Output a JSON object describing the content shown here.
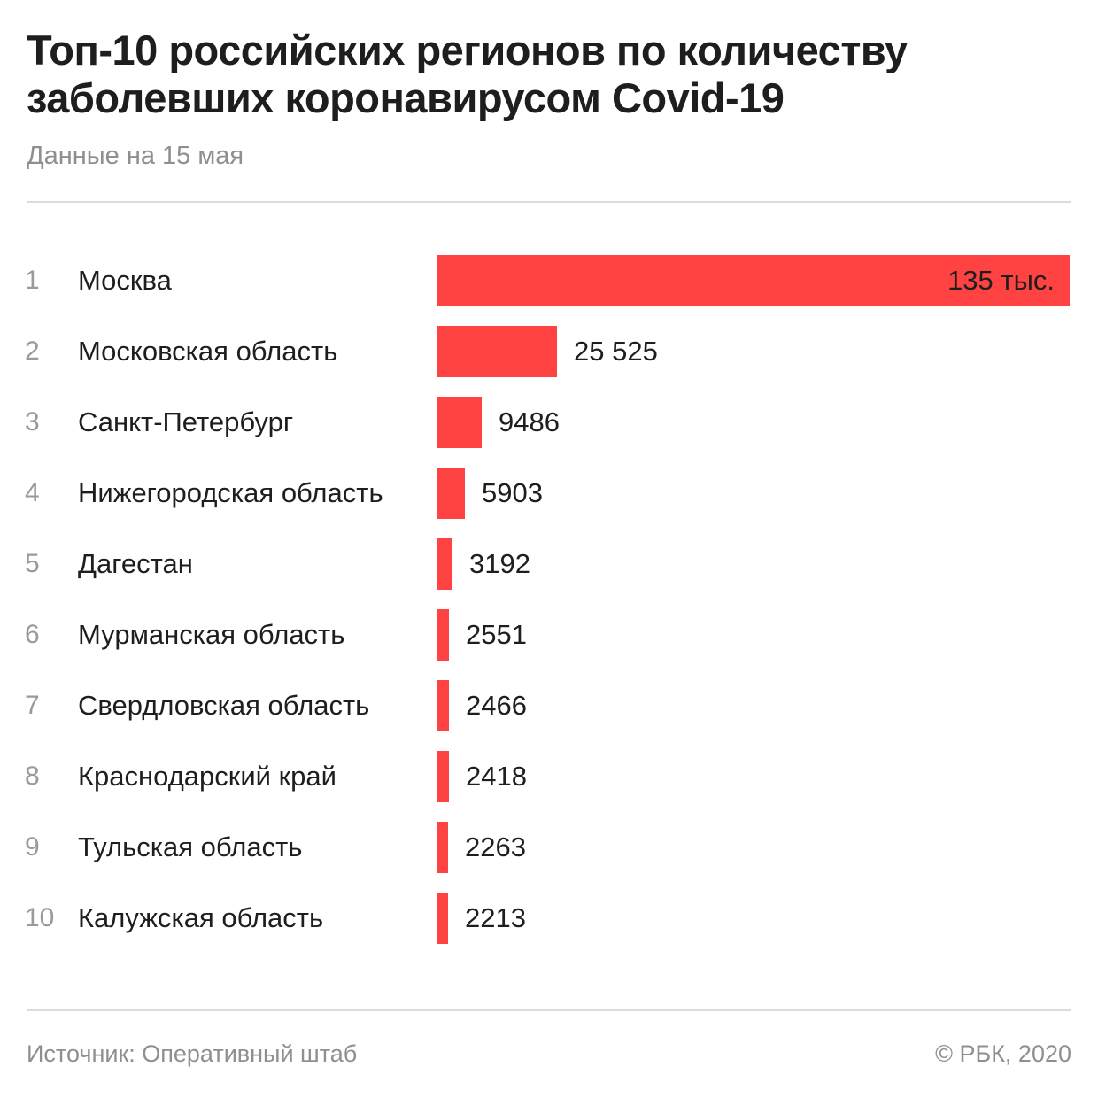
{
  "chart_data": {
    "type": "bar",
    "orientation": "horizontal",
    "title": "Топ-10 российских регионов по количеству заболевших коронавирусом Covid-19",
    "subtitle": "Данные на 15 мая",
    "categories": [
      "Москва",
      "Московская область",
      "Санкт-Петербург",
      "Нижегородская область",
      "Дагестан",
      "Мурманская область",
      "Свердловская область",
      "Краснодарский край",
      "Тульская область",
      "Калужская область"
    ],
    "ranks": [
      "1",
      "2",
      "3",
      "4",
      "5",
      "6",
      "7",
      "8",
      "9",
      "10"
    ],
    "values": [
      135000,
      25525,
      9486,
      5903,
      3192,
      2551,
      2466,
      2418,
      2263,
      2213
    ],
    "value_labels": [
      "135 тыс.",
      "25 525",
      "9486",
      "5903",
      "3192",
      "2551",
      "2466",
      "2418",
      "2263",
      "2213"
    ],
    "xlim": [
      0,
      135000
    ],
    "grid": false,
    "bar_color": "#ff4343"
  },
  "footer": {
    "source": "Источник: Оперативный штаб",
    "copyright": "© РБК, 2020"
  }
}
